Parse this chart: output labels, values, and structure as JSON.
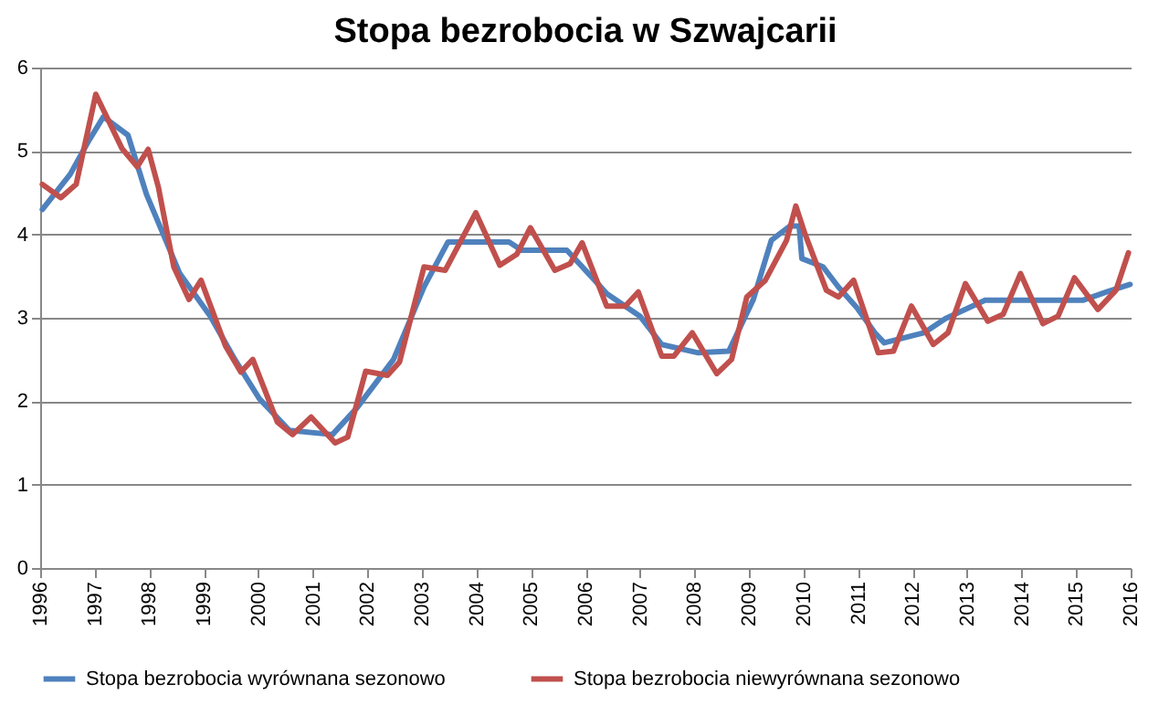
{
  "chart_data": {
    "type": "line",
    "title": "Stopa bezrobocia w Szwajcarii",
    "xlim": [
      1996,
      2016
    ],
    "xticks": [
      1996,
      1997,
      1998,
      1999,
      2000,
      2001,
      2002,
      2003,
      2004,
      2005,
      2006,
      2007,
      2008,
      2009,
      2010,
      2011,
      2012,
      2013,
      2014,
      2015,
      2016
    ],
    "ylim": [
      0,
      6
    ],
    "yticks": [
      0,
      1,
      2,
      3,
      4,
      5,
      6
    ],
    "grid": "y",
    "legend": "bottom",
    "marker": "none",
    "line_style": "solid",
    "series": [
      {
        "name": "Stopa bezrobocia wyrównana sezonowo",
        "color": "#4f81bd",
        "x": [
          1996.04,
          1996.55,
          1996.88,
          1997.16,
          1997.61,
          1997.95,
          1998.56,
          1999.12,
          1999.57,
          2000.02,
          2000.57,
          2001.36,
          2001.81,
          2002.48,
          2003.04,
          2003.48,
          2004.6,
          2004.83,
          2005.66,
          2006.17,
          2006.39,
          2007.0,
          2007.4,
          2008.07,
          2008.63,
          2009.08,
          2009.41,
          2009.75,
          2009.92,
          2009.97,
          2010.36,
          2010.64,
          2010.98,
          2011.31,
          2011.48,
          2012.21,
          2012.6,
          2013.33,
          2015.12,
          2015.56,
          2015.99
        ],
        "values": [
          4.3,
          4.72,
          5.11,
          5.41,
          5.19,
          4.48,
          3.53,
          3.02,
          2.5,
          2.03,
          1.65,
          1.6,
          1.92,
          2.5,
          3.37,
          3.91,
          3.91,
          3.81,
          3.81,
          3.45,
          3.29,
          3.02,
          2.68,
          2.58,
          2.6,
          3.22,
          3.93,
          4.1,
          4.1,
          3.71,
          3.61,
          3.37,
          3.12,
          2.82,
          2.7,
          2.82,
          2.99,
          3.21,
          3.21,
          3.31,
          3.4
        ]
      },
      {
        "name": "Stopa bezrobocia niewyrównana sezonowo",
        "color": "#c0504d",
        "x": [
          1996.04,
          1996.38,
          1996.66,
          1997.02,
          1997.5,
          1997.78,
          1997.98,
          1998.17,
          1998.45,
          1998.73,
          1998.95,
          1999.4,
          1999.68,
          1999.9,
          2000.35,
          2000.63,
          2000.97,
          2001.41,
          2001.64,
          2001.97,
          2002.37,
          2002.59,
          2003.04,
          2003.43,
          2003.99,
          2004.43,
          2004.74,
          2004.99,
          2005.44,
          2005.72,
          2005.94,
          2006.39,
          2006.73,
          2006.97,
          2007.4,
          2007.62,
          2007.96,
          2008.41,
          2008.68,
          2008.96,
          2009.3,
          2009.69,
          2009.86,
          2010.03,
          2010.42,
          2010.64,
          2010.92,
          2011.37,
          2011.65,
          2011.98,
          2012.38,
          2012.65,
          2012.97,
          2013.38,
          2013.66,
          2013.98,
          2014.39,
          2014.67,
          2014.97,
          2015.4,
          2015.73,
          2015.96
        ],
        "values": [
          4.6,
          4.44,
          4.6,
          5.68,
          5.03,
          4.81,
          5.02,
          4.56,
          3.61,
          3.22,
          3.45,
          2.66,
          2.35,
          2.5,
          1.75,
          1.6,
          1.81,
          1.5,
          1.57,
          2.36,
          2.31,
          2.47,
          3.61,
          3.57,
          4.26,
          3.63,
          3.76,
          4.08,
          3.57,
          3.65,
          3.9,
          3.14,
          3.14,
          3.31,
          2.54,
          2.54,
          2.82,
          2.33,
          2.5,
          3.25,
          3.45,
          3.93,
          4.34,
          4.0,
          3.33,
          3.25,
          3.45,
          2.58,
          2.6,
          3.14,
          2.68,
          2.82,
          3.41,
          2.96,
          3.04,
          3.53,
          2.93,
          3.02,
          3.48,
          3.1,
          3.33,
          3.78
        ]
      }
    ]
  }
}
